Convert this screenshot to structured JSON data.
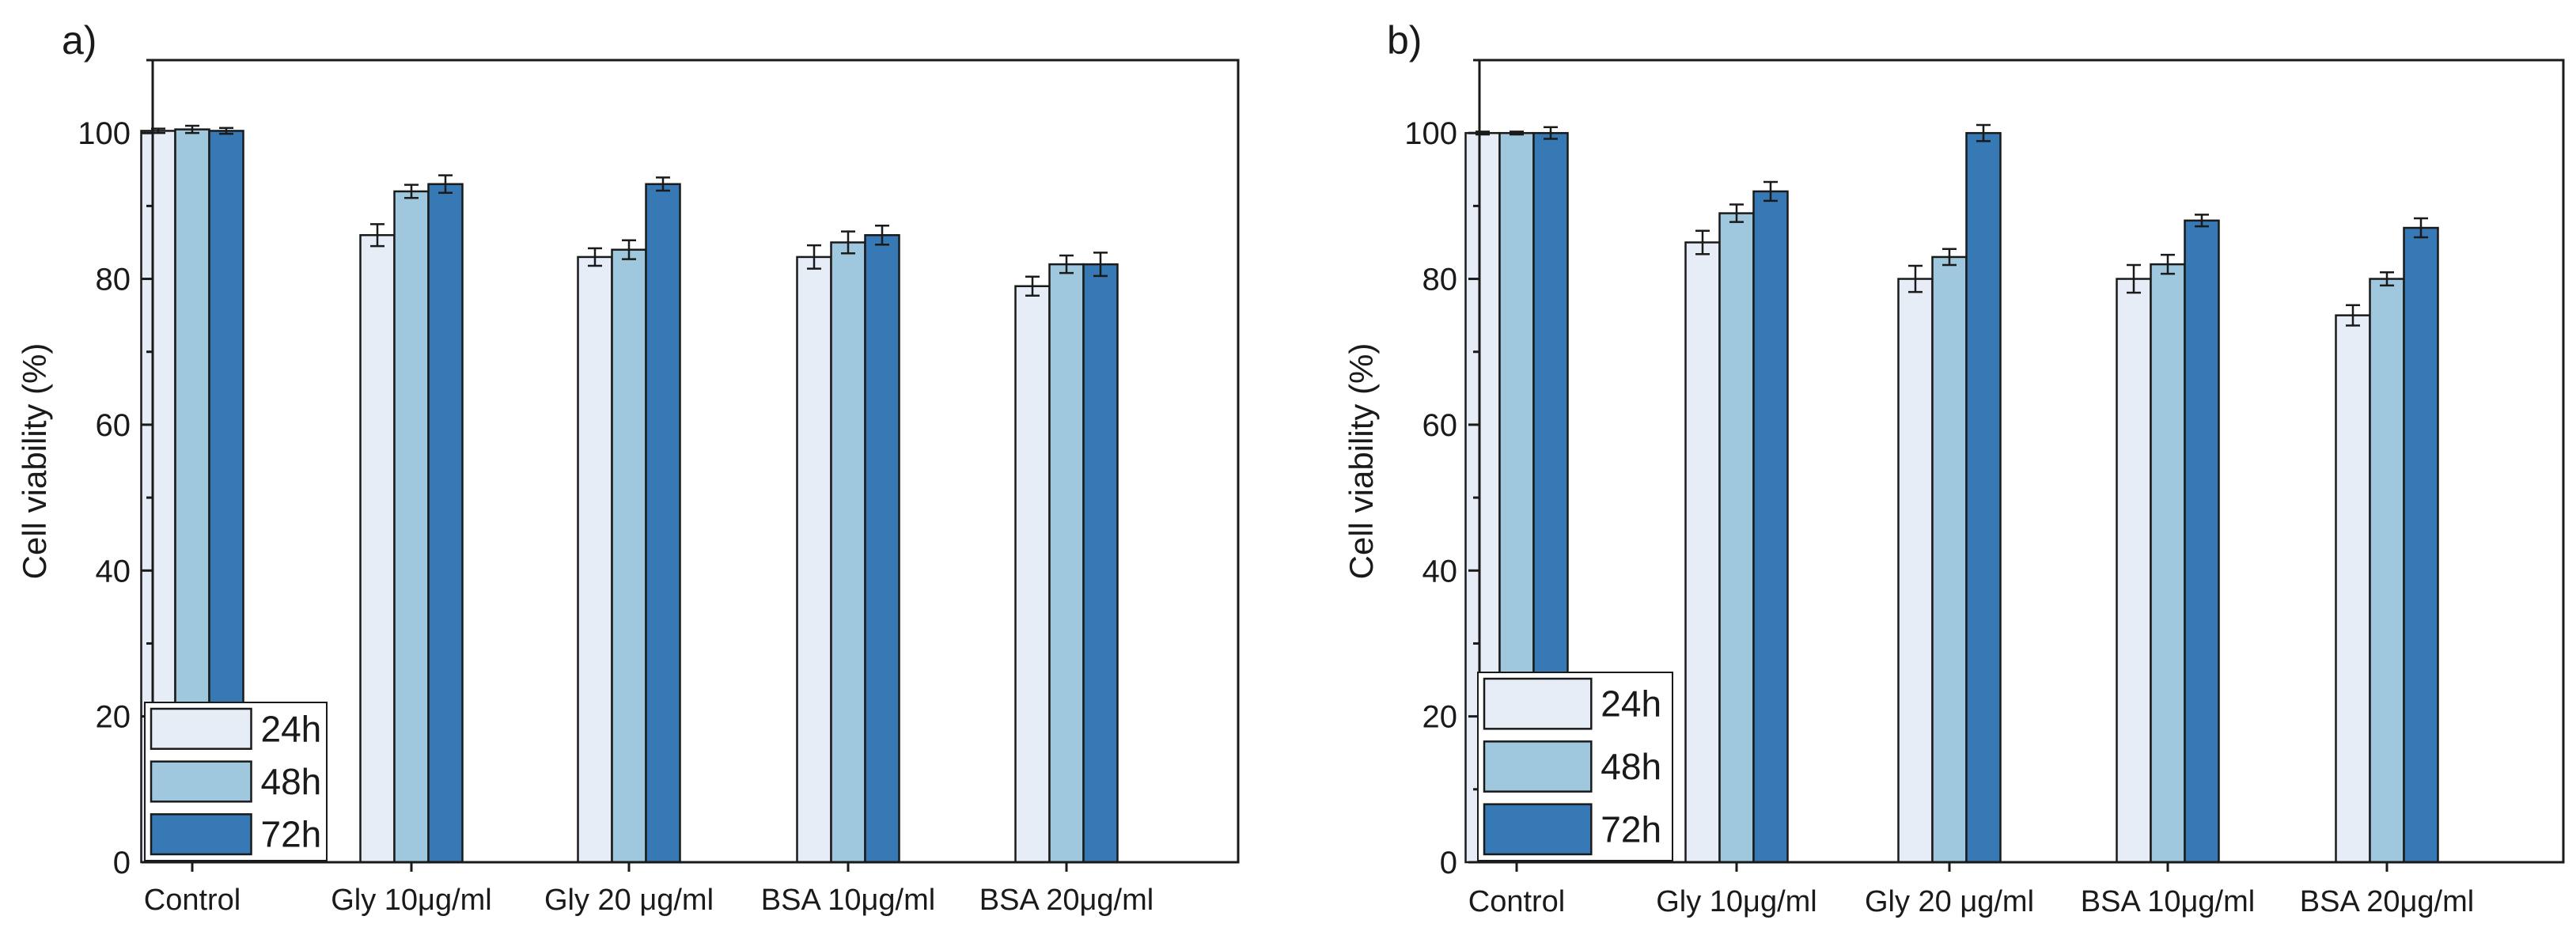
{
  "chart_data": [
    {
      "type": "bar",
      "panel_label": "a)",
      "title": "",
      "xlabel": "",
      "ylabel": "Cell viability (%)",
      "ylim": [
        0,
        110
      ],
      "yticks": [
        0,
        20,
        40,
        60,
        80,
        100
      ],
      "categories": [
        "Control",
        "Gly 10μg/ml",
        "Gly 20 μg/ml",
        "BSA 10μg/ml",
        "BSA 20μg/ml"
      ],
      "series": [
        {
          "name": "24h",
          "color": "#e6edf7",
          "values": [
            100.3,
            86,
            83,
            83,
            79
          ],
          "errors": [
            0.3,
            1.5,
            1.2,
            1.6,
            1.3
          ]
        },
        {
          "name": "48h",
          "color": "#9fc7dd",
          "values": [
            100.5,
            92,
            84,
            85,
            82
          ],
          "errors": [
            0.5,
            0.9,
            1.3,
            1.5,
            1.2
          ]
        },
        {
          "name": "72h",
          "color": "#3679b4",
          "values": [
            100.3,
            93,
            93,
            86,
            82
          ],
          "errors": [
            0.4,
            1.2,
            0.9,
            1.3,
            1.6
          ]
        }
      ],
      "legend": {
        "position": "bottom-left",
        "entries": [
          "24h",
          "48h",
          "72h"
        ]
      },
      "grid": false
    },
    {
      "type": "bar",
      "panel_label": "b)",
      "title": "",
      "xlabel": "",
      "ylabel": "Cell viability (%)",
      "ylim": [
        0,
        110
      ],
      "yticks": [
        0,
        20,
        40,
        60,
        80,
        100
      ],
      "categories": [
        "Control",
        "Gly 10μg/ml",
        "Gly 20 μg/ml",
        "BSA 10μg/ml",
        "BSA 20μg/ml"
      ],
      "series": [
        {
          "name": "24h",
          "color": "#e6edf7",
          "values": [
            100,
            85,
            80,
            80,
            75
          ],
          "errors": [
            0.2,
            1.6,
            1.8,
            1.9,
            1.4
          ]
        },
        {
          "name": "48h",
          "color": "#9fc7dd",
          "values": [
            100,
            89,
            83,
            82,
            80
          ],
          "errors": [
            0.2,
            1.2,
            1.1,
            1.3,
            0.9
          ]
        },
        {
          "name": "72h",
          "color": "#3679b4",
          "values": [
            100,
            92,
            100,
            88,
            87
          ],
          "errors": [
            0.8,
            1.3,
            1.1,
            0.8,
            1.3
          ]
        }
      ],
      "legend": {
        "position": "bottom-left",
        "entries": [
          "24h",
          "48h",
          "72h"
        ]
      },
      "grid": false
    }
  ]
}
